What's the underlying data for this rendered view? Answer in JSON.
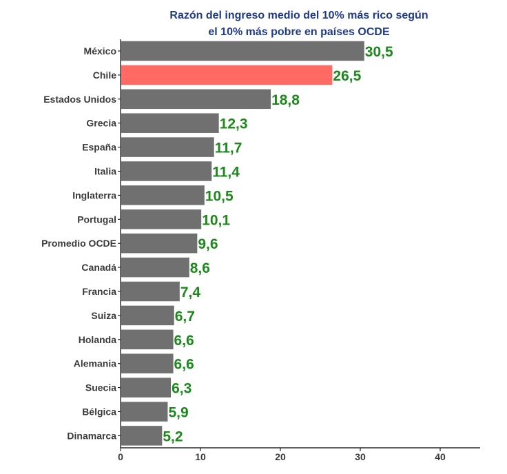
{
  "chart_data": {
    "type": "bar",
    "orientation": "horizontal",
    "title_lines": [
      "Razón del ingreso medio del 10% más rico según",
      "el 10% más pobre en países OCDE"
    ],
    "categories": [
      "México",
      "Chile",
      "Estados Unidos",
      "Grecia",
      "España",
      "Italia",
      "Inglaterra",
      "Portugal",
      "Promedio OCDE",
      "Canadá",
      "Francia",
      "Suiza",
      "Holanda",
      "Alemania",
      "Suecia",
      "Bélgica",
      "Dinamarca"
    ],
    "values": [
      30.5,
      26.5,
      18.8,
      12.3,
      11.7,
      11.4,
      10.5,
      10.1,
      9.6,
      8.6,
      7.4,
      6.7,
      6.6,
      6.6,
      6.3,
      5.9,
      5.2
    ],
    "value_labels": [
      "30,5",
      "26,5",
      "18,8",
      "12,3",
      "11,7",
      "11,4",
      "10,5",
      "10,1",
      "9,6",
      "8,6",
      "7,4",
      "6,7",
      "6,6",
      "6,6",
      "6,3",
      "5,9",
      "5,2"
    ],
    "highlight": "Chile",
    "xlim": [
      0,
      45
    ],
    "xticks": [
      0,
      10,
      20,
      30,
      40
    ],
    "xlabel": "",
    "ylabel": "",
    "grid": false,
    "colors": {
      "bar": "#707070",
      "highlight_bar": "#ff6a64",
      "value_label": "#1a8a1a",
      "title": "#1f3a8a",
      "axis": "#000000",
      "text": "#3a3a3a"
    }
  }
}
